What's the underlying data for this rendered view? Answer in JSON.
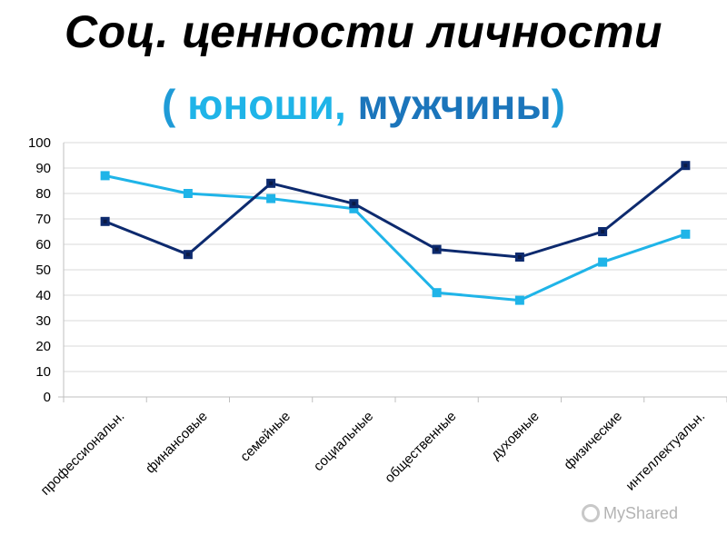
{
  "header": {
    "title": "Соц. ценности личности",
    "subtitle_open": "(",
    "subtitle_series1": "юноши,",
    "subtitle_series2": "мужчины",
    "subtitle_close": ")"
  },
  "colors": {
    "series1": "#1fb4e8",
    "series2": "#0d2a6e",
    "subtitle_paren": "#1f9bd7",
    "subtitle_series2": "#1b75bb",
    "grid": "#d9d9d9"
  },
  "watermark": {
    "text": "MyShared",
    "icon": "myshared-logo-icon"
  },
  "chart_data": {
    "type": "line",
    "title": "",
    "xlabel": "",
    "ylabel": "",
    "ylim": [
      0,
      100
    ],
    "yticks": [
      0,
      10,
      20,
      30,
      40,
      50,
      60,
      70,
      80,
      90,
      100
    ],
    "grid": true,
    "categories": [
      "профессиональн.",
      "финансовые",
      "семейные",
      "социальные",
      "общественные",
      "духовные",
      "физические",
      "интеллектуальн."
    ],
    "series": [
      {
        "name": "юноши",
        "color": "#1fb4e8",
        "values": [
          87,
          80,
          78,
          74,
          41,
          38,
          53,
          64
        ]
      },
      {
        "name": "мужчины",
        "color": "#0d2a6e",
        "values": [
          69,
          56,
          84,
          76,
          58,
          55,
          65,
          91
        ]
      }
    ]
  }
}
